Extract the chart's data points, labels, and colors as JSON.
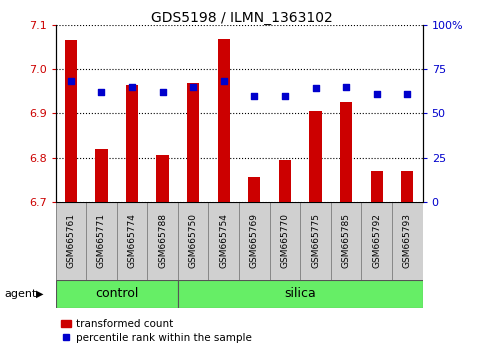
{
  "title": "GDS5198 / ILMN_1363102",
  "samples": [
    "GSM665761",
    "GSM665771",
    "GSM665774",
    "GSM665788",
    "GSM665750",
    "GSM665754",
    "GSM665769",
    "GSM665770",
    "GSM665775",
    "GSM665785",
    "GSM665792",
    "GSM665793"
  ],
  "groups": [
    "control",
    "control",
    "control",
    "control",
    "silica",
    "silica",
    "silica",
    "silica",
    "silica",
    "silica",
    "silica",
    "silica"
  ],
  "transformed_count": [
    7.065,
    6.82,
    6.965,
    6.805,
    6.968,
    7.068,
    6.755,
    6.795,
    6.905,
    6.925,
    6.77,
    6.77
  ],
  "percentile_rank": [
    68,
    62,
    65,
    62,
    65,
    68,
    60,
    60,
    64,
    65,
    61,
    61
  ],
  "ylim_left": [
    6.7,
    7.1
  ],
  "ylim_right": [
    0,
    100
  ],
  "yticks_left": [
    6.7,
    6.8,
    6.9,
    7.0,
    7.1
  ],
  "yticks_right": [
    0,
    25,
    50,
    75,
    100
  ],
  "ytick_labels_right": [
    "0",
    "25",
    "50",
    "75",
    "100%"
  ],
  "bar_color": "#cc0000",
  "dot_color": "#0000cc",
  "bar_bottom": 6.7,
  "group_bar_color": "#66ee66",
  "agent_label": "agent",
  "legend_bar_label": "transformed count",
  "legend_dot_label": "percentile rank within the sample",
  "tick_label_color_left": "#cc0000",
  "tick_label_color_right": "#0000cc",
  "label_box_color": "#d0d0d0",
  "n_control": 4,
  "n_silica": 8
}
